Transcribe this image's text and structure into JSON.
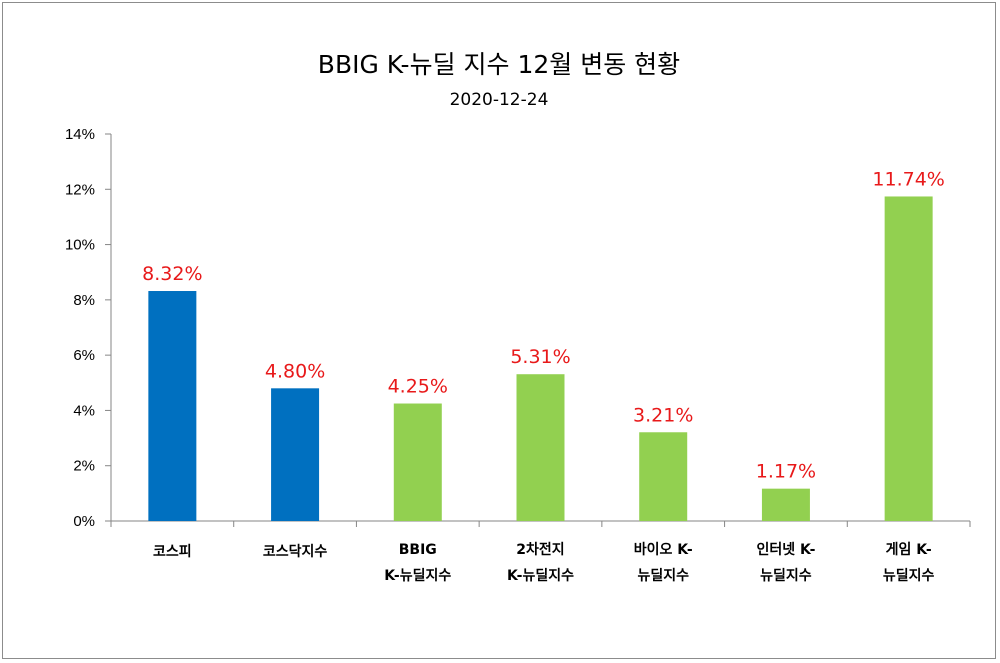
{
  "chart_data": {
    "type": "bar",
    "title": "BBIG K-뉴딜 지수 12월 변동 현황",
    "subtitle": "2020-12-24",
    "xlabel": "",
    "ylabel": "",
    "ylim": [
      0,
      14
    ],
    "ytick_values": [
      0,
      2,
      4,
      6,
      8,
      10,
      12,
      14
    ],
    "yticks": [
      "0%",
      "2%",
      "4%",
      "6%",
      "8%",
      "10%",
      "12%",
      "14%"
    ],
    "grid": false,
    "legend": "none",
    "categories": [
      [
        "코스피"
      ],
      [
        "코스닥지수"
      ],
      [
        "BBIG",
        "K-뉴딜지수"
      ],
      [
        "2차전지",
        "K-뉴딜지수"
      ],
      [
        "바이오 K-",
        "뉴딜지수"
      ],
      [
        "인터넷 K-",
        "뉴딜지수"
      ],
      [
        "게임 K-",
        "뉴딜지수"
      ]
    ],
    "values": [
      8.32,
      4.8,
      4.25,
      5.31,
      3.21,
      1.17,
      11.74
    ],
    "data_labels": [
      "8.32%",
      "4.80%",
      "4.25%",
      "5.31%",
      "3.21%",
      "1.17%",
      "11.74%"
    ],
    "bar_colors": [
      "#0070c0",
      "#0070c0",
      "#92d050",
      "#92d050",
      "#92d050",
      "#92d050",
      "#92d050"
    ],
    "label_color": "#e8191a"
  }
}
